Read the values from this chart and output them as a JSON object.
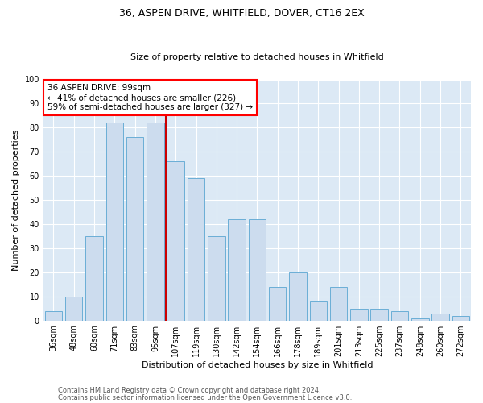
{
  "title_line1": "36, ASPEN DRIVE, WHITFIELD, DOVER, CT16 2EX",
  "title_line2": "Size of property relative to detached houses in Whitfield",
  "xlabel": "Distribution of detached houses by size in Whitfield",
  "ylabel": "Number of detached properties",
  "footnote1": "Contains HM Land Registry data © Crown copyright and database right 2024.",
  "footnote2": "Contains public sector information licensed under the Open Government Licence v3.0.",
  "bar_labels": [
    "36sqm",
    "48sqm",
    "60sqm",
    "71sqm",
    "83sqm",
    "95sqm",
    "107sqm",
    "119sqm",
    "130sqm",
    "142sqm",
    "154sqm",
    "166sqm",
    "178sqm",
    "189sqm",
    "201sqm",
    "213sqm",
    "225sqm",
    "237sqm",
    "248sqm",
    "260sqm",
    "272sqm"
  ],
  "bar_values": [
    4,
    10,
    35,
    82,
    76,
    82,
    66,
    59,
    35,
    42,
    42,
    14,
    20,
    8,
    14,
    5,
    5,
    4,
    1,
    3,
    2
  ],
  "bar_color": "#ccdcee",
  "bar_edgecolor": "#6aaed6",
  "annotation_line1": "36 ASPEN DRIVE: 99sqm",
  "annotation_line2": "← 41% of detached houses are smaller (226)",
  "annotation_line3": "59% of semi-detached houses are larger (327) →",
  "vline_color": "#cc0000",
  "ylim": [
    0,
    100
  ],
  "yticks": [
    0,
    10,
    20,
    30,
    40,
    50,
    60,
    70,
    80,
    90,
    100
  ],
  "fig_bg_color": "#ffffff",
  "plot_bg_color": "#dce9f5",
  "title_fontsize": 9,
  "subtitle_fontsize": 8,
  "ylabel_fontsize": 8,
  "xlabel_fontsize": 8,
  "tick_fontsize": 7,
  "footnote_fontsize": 6,
  "annotation_fontsize": 7.5
}
